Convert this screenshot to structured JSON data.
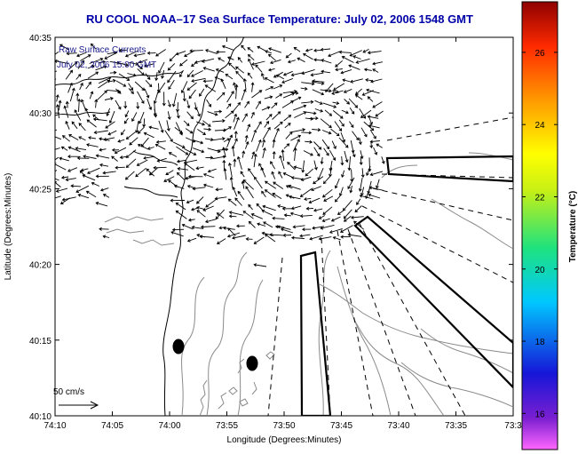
{
  "title": "RU COOL  NOAA–17  Sea Surface Temperature:  July 02, 2006 1548 GMT",
  "legend": {
    "line1": "Raw Surface Currents",
    "line2": "July 02, 2006 15:00 GMT",
    "scale_label": "50 cm/s"
  },
  "axes": {
    "xlabel": "Longitude (Degrees:Minutes)",
    "ylabel": "Latitude (Degrees:Minutes)",
    "xticks": [
      "74:10",
      "74:05",
      "74:00",
      "73:55",
      "73:50",
      "73:45",
      "73:40",
      "73:35",
      "73:3"
    ],
    "yticks": [
      "40:35",
      "40:30",
      "40:25",
      "40:20",
      "40:15",
      "40:10"
    ]
  },
  "colorbar": {
    "label": "Temperature (°C)",
    "ticks": [
      "26",
      "24",
      "22",
      "20",
      "18",
      "16"
    ],
    "range": [
      15,
      27.4
    ]
  },
  "colors": {
    "title": "#0000a8",
    "coastline": "#000000",
    "contours": "#808080"
  }
}
